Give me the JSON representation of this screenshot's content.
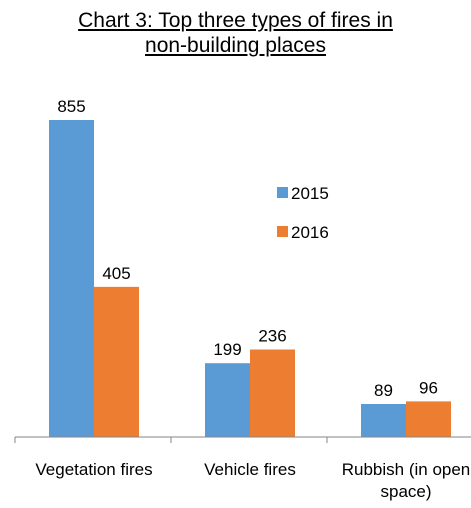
{
  "chart_data": {
    "type": "bar",
    "title": "Chart 3: Top three types of fires in non-building places",
    "categories": [
      "Vegetation fires",
      "Vehicle fires",
      "Rubbish (in open space)"
    ],
    "series": [
      {
        "name": "2015",
        "color": "#5b9bd5",
        "values": [
          855,
          199,
          89
        ]
      },
      {
        "name": "2016",
        "color": "#ed7d31",
        "values": [
          405,
          236,
          96
        ]
      }
    ],
    "legend": "center-right"
  }
}
